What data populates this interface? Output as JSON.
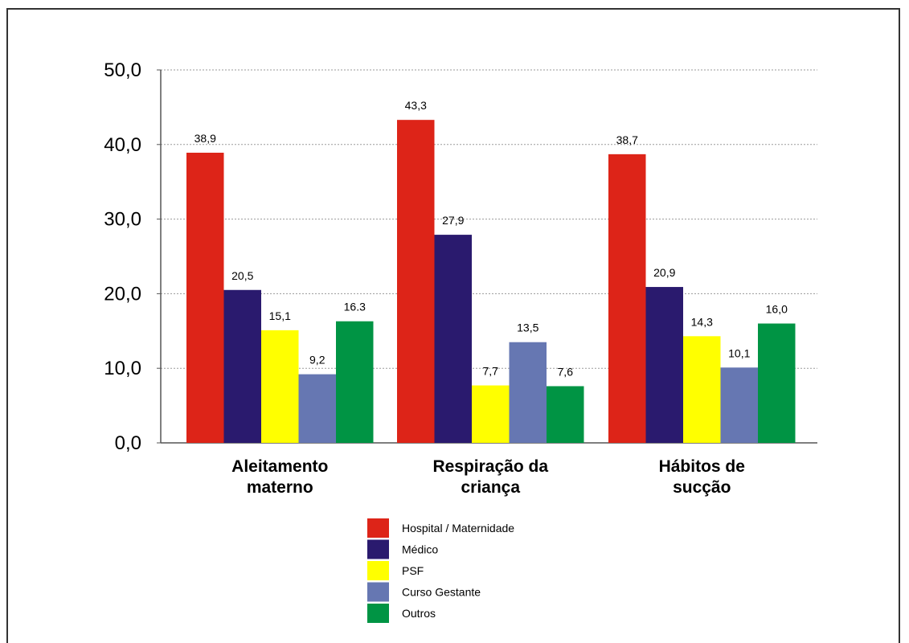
{
  "chart_data": {
    "type": "bar",
    "title": "",
    "xlabel": "",
    "ylabel": "",
    "ylim": [
      0,
      50
    ],
    "yticks": [
      "0,0",
      "10,0",
      "20,0",
      "30,0",
      "40,0",
      "50,0"
    ],
    "categories": [
      [
        "Aleitamento",
        "materno"
      ],
      [
        "Respiração da",
        "criança"
      ],
      [
        "Hábitos de",
        "sucção"
      ]
    ],
    "series": [
      {
        "name": "Hospital / Maternidade",
        "color": "#dd2418",
        "values": [
          38.9,
          43.3,
          38.7
        ],
        "labels": [
          "38,9",
          "43,3",
          "38,7"
        ]
      },
      {
        "name": "Médico",
        "color": "#2a1a6e",
        "values": [
          20.5,
          27.9,
          20.9
        ],
        "labels": [
          "20,5",
          "27,9",
          "20,9"
        ]
      },
      {
        "name": "PSF",
        "color": "#ffff00",
        "values": [
          15.1,
          7.7,
          14.3
        ],
        "labels": [
          "15,1",
          "7,7",
          "14,3"
        ]
      },
      {
        "name": "Curso Gestante",
        "color": "#6677b2",
        "values": [
          9.2,
          13.5,
          10.1
        ],
        "labels": [
          "9,2",
          "13,5",
          "10,1"
        ]
      },
      {
        "name": "Outros",
        "color": "#009444",
        "values": [
          16.3,
          7.6,
          16.0
        ],
        "labels": [
          "16.3",
          "7,6",
          "16,0"
        ]
      }
    ],
    "grid": true,
    "legend_position": "bottom-center"
  }
}
